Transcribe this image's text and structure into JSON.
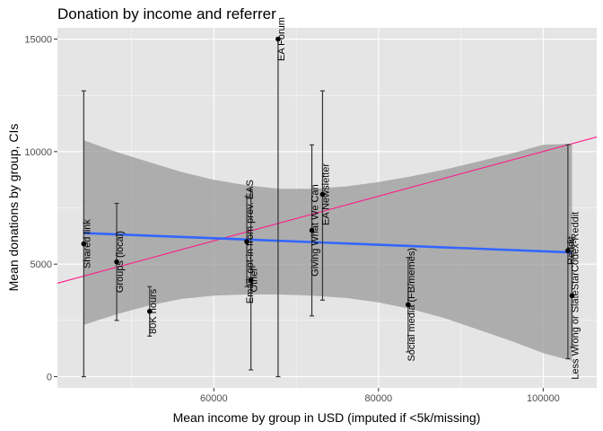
{
  "chart_data": {
    "type": "scatter",
    "title": "Donation by income and referrer",
    "xlabel": "Mean income by group in USD (imputed if <5k/missing)",
    "ylabel": "Mean donations by group, CIs",
    "xlim": [
      41000,
      106500
    ],
    "ylim": [
      -500,
      15500
    ],
    "x_ticks": [
      60000,
      80000,
      100000
    ],
    "x_tick_labels": [
      "60000",
      "80000",
      "100000"
    ],
    "y_ticks": [
      0,
      5000,
      10000,
      15000
    ],
    "y_tick_labels": [
      "0",
      "5000",
      "10000",
      "15000"
    ],
    "grid": true,
    "points": [
      {
        "label": "Shared link",
        "x": 44200,
        "y": 5900,
        "ci": [
          0,
          12700
        ]
      },
      {
        "label": "Groups (local)",
        "x": 48200,
        "y": 5100,
        "ci": [
          2500,
          7700
        ]
      },
      {
        "label": "80K hours",
        "x": 52200,
        "y": 2900,
        "ci": [
          1800,
          4000
        ]
      },
      {
        "label": "Email; opt-in from prev. EAS",
        "x": 64000,
        "y": 6000,
        "ci": [
          4000,
          8000
        ]
      },
      {
        "label": "Other",
        "x": 64500,
        "y": 4300,
        "ci": [
          300,
          8300
        ]
      },
      {
        "label": "EA Forum",
        "x": 67800,
        "y": 15000,
        "ci": [
          0,
          15000
        ]
      },
      {
        "label": "Giving What We Can",
        "x": 71900,
        "y": 6500,
        "ci": [
          2700,
          10300
        ]
      },
      {
        "label": "EA Newsletter",
        "x": 73200,
        "y": 8100,
        "ci": [
          3400,
          12700
        ]
      },
      {
        "label": "Social media (FB/memes)",
        "x": 83600,
        "y": 3200,
        "ci": [
          1100,
          5300
        ]
      },
      {
        "label": "Reddit",
        "x": 103000,
        "y": 5600,
        "ci": [
          800,
          10300
        ]
      },
      {
        "label": "Less Wrong or SlateStarCodex-Reddit",
        "x": 103500,
        "y": 3600,
        "ci": [
          1300,
          6000
        ]
      }
    ],
    "fit_line": {
      "method": "lm",
      "x": [
        44200,
        103500
      ],
      "y": [
        6380,
        5520
      ],
      "color": "#3366ff"
    },
    "confidence_band": {
      "color": "#999999",
      "x": [
        44200,
        48000,
        52000,
        56000,
        60000,
        64000,
        68000,
        72000,
        76000,
        80000,
        84000,
        88000,
        92000,
        96000,
        100000,
        103500
      ],
      "upper": [
        10500,
        10000,
        9550,
        9100,
        8750,
        8500,
        8350,
        8350,
        8450,
        8650,
        8900,
        9200,
        9550,
        9900,
        10300,
        10350
      ],
      "lower": [
        2300,
        2750,
        3150,
        3450,
        3600,
        3650,
        3650,
        3600,
        3500,
        3300,
        3000,
        2600,
        2100,
        1600,
        1050,
        700
      ]
    },
    "reference_line": {
      "x": [
        41000,
        106500
      ],
      "y": [
        4150,
        10650
      ],
      "color": "#ff1a8c"
    },
    "colors": {
      "panel": "#e5e5e5",
      "grid_major": "#ffffff",
      "point": "#000000",
      "errorbar": "#333333"
    }
  }
}
